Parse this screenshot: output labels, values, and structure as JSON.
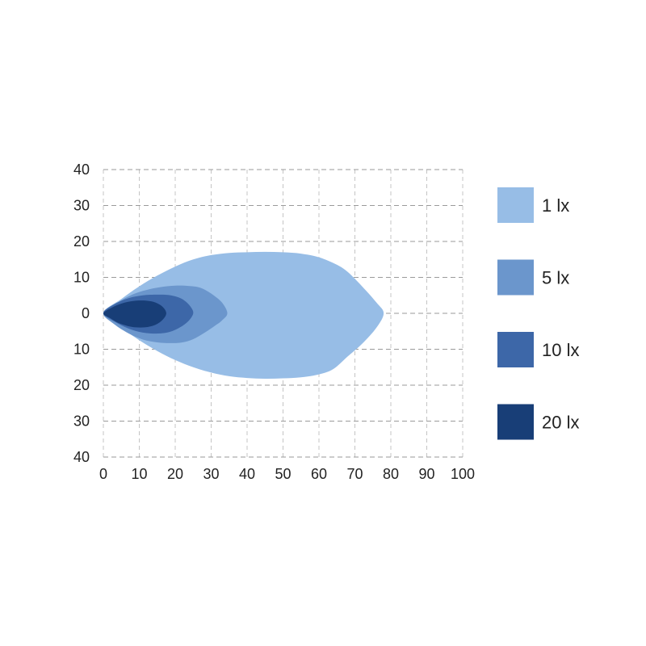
{
  "chart_data": {
    "type": "area",
    "title": "",
    "xlabel": "",
    "ylabel": "",
    "xlim": [
      0,
      100
    ],
    "ylim": [
      -40,
      40
    ],
    "x_ticks": [
      0,
      10,
      20,
      30,
      40,
      50,
      60,
      70,
      80,
      90,
      100
    ],
    "y_ticks": [
      40,
      30,
      20,
      10,
      0,
      -10,
      -20,
      -30,
      -40
    ],
    "y_tick_labels": [
      "40",
      "30",
      "20",
      "10",
      "0",
      "10",
      "20",
      "30",
      "40"
    ],
    "grid": true,
    "legend_position": "right",
    "series": [
      {
        "name": "1 lx",
        "color": "#97bde6",
        "outline": [
          [
            0,
            0
          ],
          [
            5,
            4
          ],
          [
            10,
            7.5
          ],
          [
            15,
            10.5
          ],
          [
            20,
            13
          ],
          [
            25,
            15
          ],
          [
            30,
            16.2
          ],
          [
            35,
            16.8
          ],
          [
            40,
            17
          ],
          [
            45,
            17.1
          ],
          [
            50,
            17
          ],
          [
            55,
            16.6
          ],
          [
            60,
            15.6
          ],
          [
            65,
            13.5
          ],
          [
            68,
            11.5
          ],
          [
            72,
            7.5
          ],
          [
            76,
            3
          ],
          [
            78,
            0
          ],
          [
            76,
            -4
          ],
          [
            72,
            -8.5
          ],
          [
            68,
            -12
          ],
          [
            64,
            -15.5
          ],
          [
            60,
            -17
          ],
          [
            55,
            -17.8
          ],
          [
            50,
            -18.1
          ],
          [
            45,
            -18.2
          ],
          [
            40,
            -18
          ],
          [
            35,
            -17.5
          ],
          [
            30,
            -16.5
          ],
          [
            25,
            -15
          ],
          [
            20,
            -13
          ],
          [
            15,
            -10.5
          ],
          [
            10,
            -7.5
          ],
          [
            5,
            -4
          ]
        ]
      },
      {
        "name": "5 lx",
        "color": "#6b96cc",
        "outline": [
          [
            0,
            0
          ],
          [
            4,
            3
          ],
          [
            8,
            5.2
          ],
          [
            12,
            6.5
          ],
          [
            16,
            7.3
          ],
          [
            20,
            7.7
          ],
          [
            24,
            7.6
          ],
          [
            27,
            7.1
          ],
          [
            30,
            5.5
          ],
          [
            33,
            3
          ],
          [
            34.5,
            0
          ],
          [
            33,
            -2
          ],
          [
            31,
            -3.5
          ],
          [
            28,
            -5.5
          ],
          [
            25,
            -7.2
          ],
          [
            22,
            -8.1
          ],
          [
            19,
            -8.3
          ],
          [
            15,
            -8.1
          ],
          [
            11,
            -7.3
          ],
          [
            7,
            -5.6
          ],
          [
            3,
            -3
          ]
        ]
      },
      {
        "name": "10 lx",
        "color": "#3d67a8",
        "outline": [
          [
            0,
            0
          ],
          [
            3,
            2.5
          ],
          [
            7,
            4.2
          ],
          [
            11,
            5
          ],
          [
            15,
            5.2
          ],
          [
            18,
            5.1
          ],
          [
            21,
            4.4
          ],
          [
            23,
            3.2
          ],
          [
            24.5,
            1.5
          ],
          [
            25,
            0
          ],
          [
            24,
            -1.8
          ],
          [
            22,
            -3.5
          ],
          [
            19,
            -5
          ],
          [
            16,
            -5.6
          ],
          [
            12,
            -5.5
          ],
          [
            8,
            -4.6
          ],
          [
            4,
            -2.8
          ]
        ]
      },
      {
        "name": "20 lx",
        "color": "#183e77",
        "outline": [
          [
            0,
            0
          ],
          [
            3,
            1.9
          ],
          [
            6,
            3
          ],
          [
            9,
            3.5
          ],
          [
            12,
            3.5
          ],
          [
            14.5,
            3
          ],
          [
            16.5,
            1.8
          ],
          [
            17.5,
            0
          ],
          [
            16.5,
            -1.8
          ],
          [
            14.5,
            -3.2
          ],
          [
            11.5,
            -3.9
          ],
          [
            8,
            -3.8
          ],
          [
            4.5,
            -2.8
          ],
          [
            2,
            -1.4
          ]
        ]
      }
    ]
  }
}
